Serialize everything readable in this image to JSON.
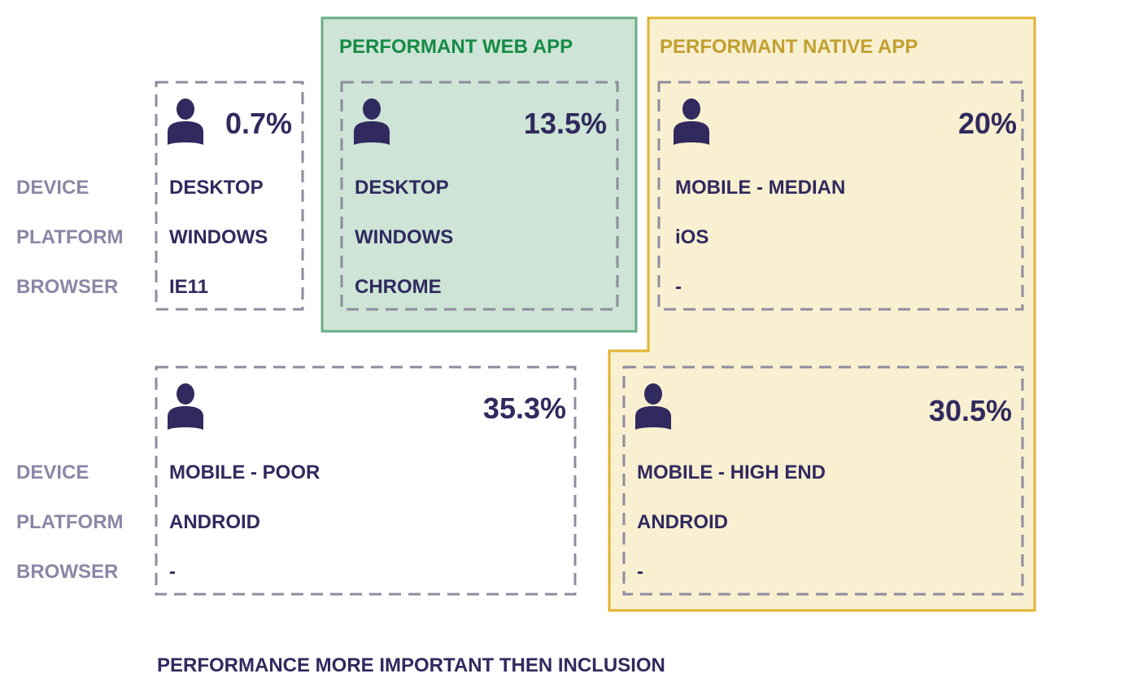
{
  "colors": {
    "ink": "#302a5e",
    "label": "#8a87a6",
    "dash": "#8f8b9e",
    "web_fill": "#cde4d6",
    "web_stroke": "#6aae86",
    "web_title": "#168a46",
    "native_fill": "#f9efd1",
    "native_stroke": "#e0b42f",
    "native_title": "#c1a02f"
  },
  "groups": {
    "web_title": "PERFORMANT WEB APP",
    "native_title": "PERFORMANT NATIVE APP"
  },
  "row_labels": {
    "top": {
      "device": "DEVICE",
      "platform": "PLATFORM",
      "browser": "BROWSER"
    },
    "bottom": {
      "device": "DEVICE",
      "platform": "PLATFORM",
      "browser": "BROWSER"
    }
  },
  "segments": [
    {
      "percent": "0.7%",
      "device": "DESKTOP",
      "platform": "WINDOWS",
      "browser": "IE11",
      "icon": "person-icon"
    },
    {
      "percent": "13.5%",
      "device": "DESKTOP",
      "platform": "WINDOWS",
      "browser": "CHROME",
      "icon": "person-icon"
    },
    {
      "percent": "20%",
      "device": "MOBILE - MEDIAN",
      "platform": "iOS",
      "browser": "-",
      "icon": "person-icon"
    },
    {
      "percent": "35.3%",
      "device": "MOBILE - POOR",
      "platform": "ANDROID",
      "browser": "-",
      "icon": "person-icon"
    },
    {
      "percent": "30.5%",
      "device": "MOBILE - HIGH END",
      "platform": "ANDROID",
      "browser": "-",
      "icon": "person-icon"
    }
  ],
  "footer": "PERFORMANCE MORE IMPORTANT THEN INCLUSION"
}
